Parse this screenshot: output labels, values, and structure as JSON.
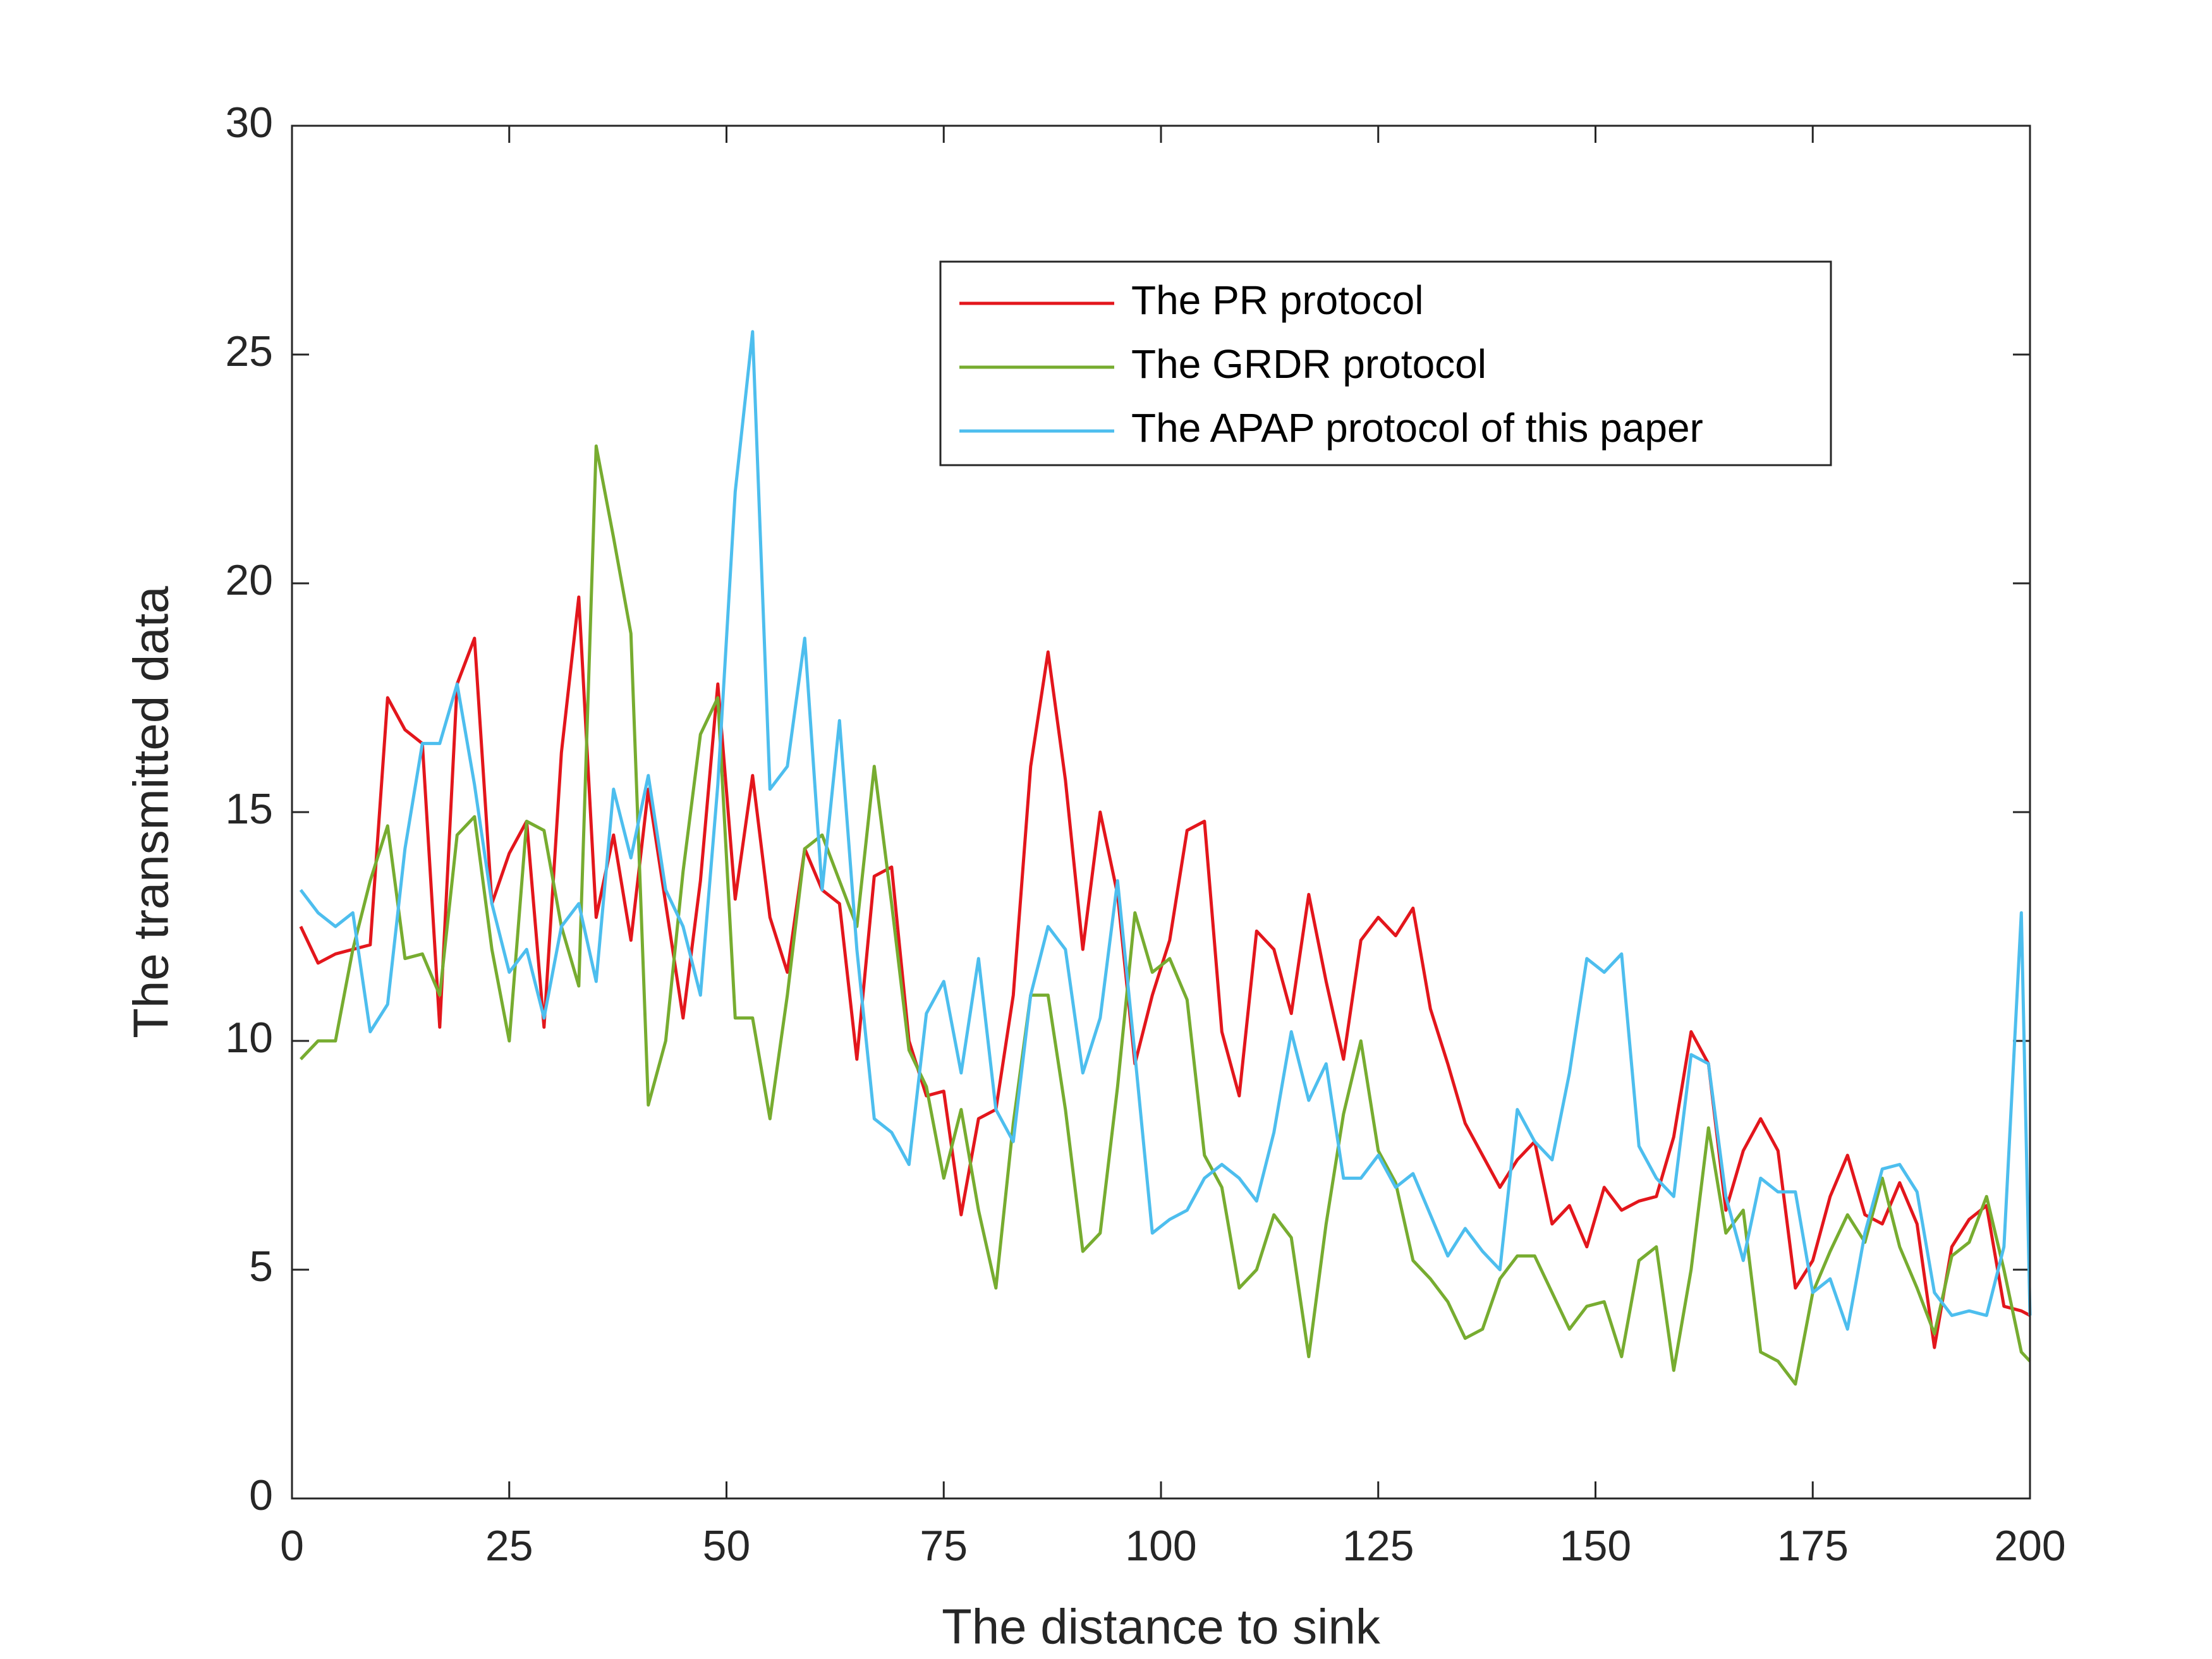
{
  "chart_data": {
    "type": "line",
    "xlabel": "The distance to sink",
    "ylabel": "The transmitted data",
    "xlim": [
      0,
      200
    ],
    "xticks": [
      0,
      25,
      50,
      75,
      100,
      125,
      150,
      175,
      200
    ],
    "ylim": [
      0,
      30
    ],
    "yticks": [
      0,
      5,
      10,
      15,
      20,
      25,
      30
    ],
    "grid": false,
    "legend": "northeast",
    "x": [
      1,
      3,
      5,
      7,
      9,
      11,
      13,
      15,
      17,
      19,
      21,
      23,
      25,
      27,
      29,
      31,
      33,
      35,
      37,
      39,
      41,
      43,
      45,
      47,
      49,
      51,
      53,
      55,
      57,
      59,
      61,
      63,
      65,
      67,
      69,
      71,
      73,
      75,
      77,
      79,
      81,
      83,
      85,
      87,
      89,
      91,
      93,
      95,
      97,
      99,
      101,
      103,
      105,
      107,
      109,
      111,
      113,
      115,
      117,
      119,
      121,
      123,
      125,
      127,
      129,
      131,
      133,
      135,
      137,
      139,
      141,
      143,
      145,
      147,
      149,
      151,
      153,
      155,
      157,
      159,
      161,
      163,
      165,
      167,
      169,
      171,
      173,
      175,
      177,
      179,
      181,
      183,
      185,
      187,
      189,
      191,
      193,
      195,
      197,
      199,
      200
    ],
    "series": [
      {
        "name": "The PR protocol",
        "color": "#e3161c",
        "values": [
          12.5,
          11.7,
          11.9,
          12.0,
          12.1,
          17.5,
          16.8,
          16.5,
          10.3,
          17.8,
          18.8,
          13.0,
          14.1,
          14.8,
          10.3,
          16.3,
          19.7,
          12.7,
          14.5,
          12.2,
          15.5,
          13.0,
          10.5,
          13.5,
          17.8,
          13.1,
          15.8,
          12.7,
          11.5,
          14.2,
          13.3,
          13.0,
          9.6,
          13.6,
          13.8,
          10.0,
          8.8,
          8.9,
          6.2,
          8.3,
          8.5,
          11.0,
          16.0,
          18.5,
          15.7,
          12.0,
          15.0,
          13.2,
          9.5,
          11.0,
          12.2,
          14.6,
          14.8,
          10.2,
          8.8,
          12.4,
          12.0,
          10.6,
          13.2,
          11.3,
          9.6,
          12.2,
          12.7,
          12.3,
          12.9,
          10.7,
          9.5,
          8.2,
          7.5,
          6.8,
          7.4,
          7.8,
          6.0,
          6.4,
          5.5,
          6.8,
          6.3,
          6.5,
          6.6,
          7.9,
          10.2,
          9.5,
          6.3,
          7.6,
          8.3,
          7.6,
          4.6,
          5.2,
          6.6,
          7.5,
          6.2,
          6.0,
          6.9,
          6.0,
          3.3,
          5.5,
          6.1,
          6.4,
          4.2,
          4.1,
          4.0
        ]
      },
      {
        "name": "The GRDR protocol",
        "color": "#77ac30",
        "values": [
          9.6,
          10.0,
          10.0,
          12.0,
          13.5,
          14.7,
          11.8,
          11.9,
          11.0,
          14.5,
          14.9,
          12.0,
          10.0,
          14.8,
          14.6,
          12.5,
          11.2,
          23.0,
          21.0,
          18.9,
          8.6,
          10.0,
          13.7,
          16.7,
          17.5,
          10.5,
          10.5,
          8.3,
          11.0,
          14.2,
          14.5,
          13.5,
          12.5,
          16.0,
          13.0,
          9.8,
          9.0,
          7.0,
          8.5,
          6.3,
          4.6,
          8.2,
          11.0,
          11.0,
          8.5,
          5.4,
          5.8,
          9.0,
          12.8,
          11.5,
          11.8,
          10.9,
          7.5,
          6.8,
          4.6,
          5.0,
          6.2,
          5.7,
          3.1,
          6.0,
          8.4,
          10.0,
          7.6,
          6.9,
          5.2,
          4.8,
          4.3,
          3.5,
          3.7,
          4.8,
          5.3,
          5.3,
          4.5,
          3.7,
          4.2,
          4.3,
          3.1,
          5.2,
          5.5,
          2.8,
          5.0,
          8.1,
          5.8,
          6.3,
          3.2,
          3.0,
          2.5,
          4.5,
          5.4,
          6.2,
          5.6,
          7.0,
          5.5,
          4.6,
          3.6,
          5.3,
          5.6,
          6.6,
          5.0,
          3.2,
          3.0
        ]
      },
      {
        "name": "The APAP protocol of this paper",
        "color": "#4dbeee",
        "values": [
          13.3,
          12.8,
          12.5,
          12.8,
          10.2,
          10.8,
          14.2,
          16.5,
          16.5,
          17.8,
          15.6,
          13.0,
          11.5,
          12.0,
          10.5,
          12.5,
          13.0,
          11.3,
          15.5,
          14.0,
          15.8,
          13.3,
          12.5,
          11.0,
          15.6,
          22.0,
          25.5,
          15.5,
          16.0,
          18.8,
          13.3,
          17.0,
          12.0,
          8.3,
          8.0,
          7.3,
          10.6,
          11.3,
          9.3,
          11.8,
          8.5,
          7.8,
          11.0,
          12.5,
          12.0,
          9.3,
          10.5,
          13.5,
          9.7,
          5.8,
          6.1,
          6.3,
          7.0,
          7.3,
          7.0,
          6.5,
          8.0,
          10.2,
          8.7,
          9.5,
          7.0,
          7.0,
          7.5,
          6.8,
          7.1,
          6.2,
          5.3,
          5.9,
          5.4,
          5.0,
          8.5,
          7.8,
          7.4,
          9.3,
          11.8,
          11.5,
          11.9,
          7.7,
          7.0,
          6.6,
          9.7,
          9.5,
          6.6,
          5.2,
          7.0,
          6.7,
          6.7,
          4.5,
          4.8,
          3.7,
          5.8,
          7.2,
          7.3,
          6.7,
          4.5,
          4.0,
          4.1,
          4.0,
          5.5,
          12.8,
          4.0
        ]
      }
    ]
  }
}
